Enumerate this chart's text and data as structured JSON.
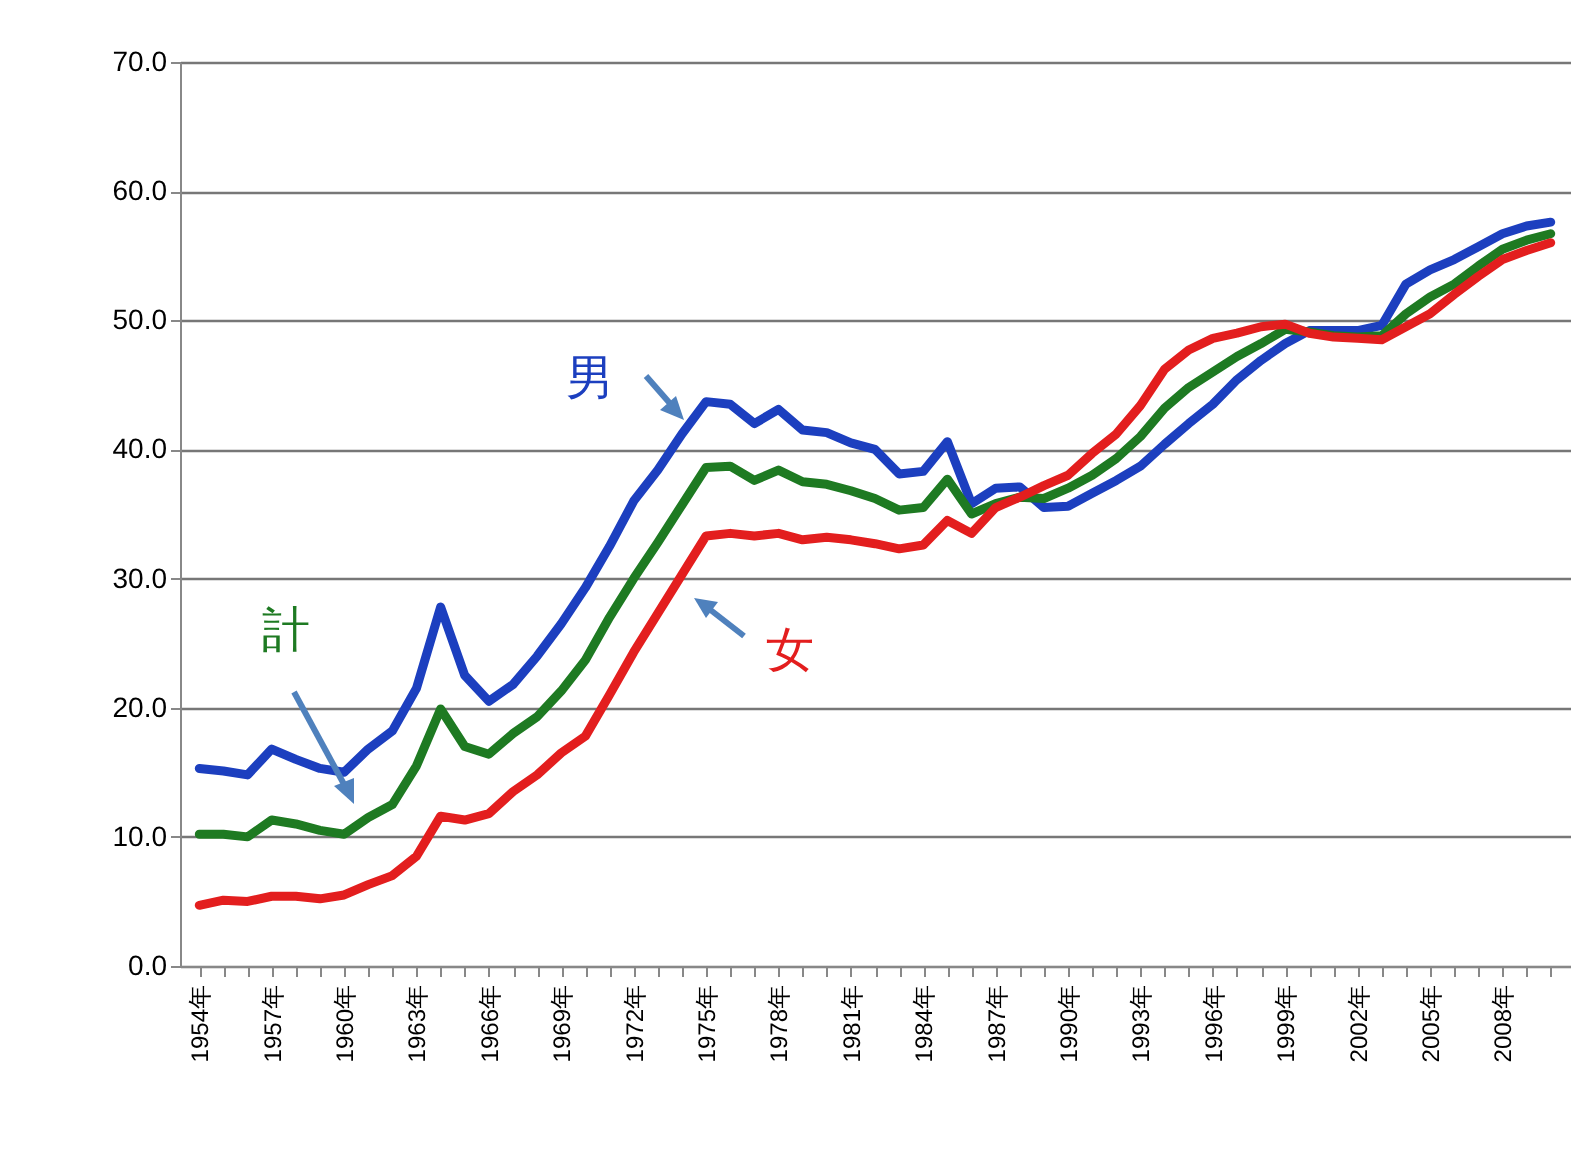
{
  "chart_data": {
    "type": "line",
    "categories": [
      "1954年",
      null,
      null,
      "1957年",
      null,
      null,
      "1960年",
      null,
      null,
      "1963年",
      null,
      null,
      "1966年",
      null,
      null,
      "1969年",
      null,
      null,
      "1972年",
      null,
      null,
      "1975年",
      null,
      null,
      "1978年",
      null,
      null,
      "1981年",
      null,
      null,
      "1984年",
      null,
      null,
      "1987年",
      null,
      null,
      "1990年",
      null,
      null,
      "1993年",
      null,
      null,
      "1996年",
      null,
      null,
      "1999年",
      null,
      null,
      "2002年",
      null,
      null,
      "2005年",
      null,
      null,
      "2008年",
      null,
      null
    ],
    "series": [
      {
        "name": "男",
        "color": "#1c3fbf",
        "values": [
          15.3,
          15.1,
          14.8,
          16.8,
          16.0,
          15.3,
          15.0,
          16.8,
          18.2,
          21.5,
          27.8,
          22.5,
          20.5,
          21.8,
          24.0,
          26.5,
          29.3,
          32.5,
          36.0,
          38.4,
          41.2,
          43.7,
          43.5,
          42.0,
          43.1,
          41.5,
          41.3,
          40.5,
          40.0,
          38.1,
          38.3,
          40.6,
          35.8,
          37.0,
          37.1,
          35.5,
          35.6,
          36.6,
          37.6,
          38.7,
          40.4,
          42.0,
          43.5,
          45.4,
          46.9,
          48.2,
          49.2,
          49.2,
          49.2,
          49.6,
          52.8,
          53.9,
          54.7,
          55.7,
          56.7,
          57.3,
          57.6
        ]
      },
      {
        "name": "計",
        "color": "#1e7a22",
        "values": [
          10.2,
          10.2,
          10.0,
          11.3,
          11.0,
          10.5,
          10.2,
          11.5,
          12.5,
          15.5,
          19.9,
          17.0,
          16.4,
          18.0,
          19.3,
          21.3,
          23.7,
          27.0,
          30.0,
          32.8,
          35.7,
          38.6,
          38.7,
          37.6,
          38.4,
          37.5,
          37.3,
          36.8,
          36.2,
          35.3,
          35.5,
          37.7,
          35.0,
          35.8,
          36.3,
          36.2,
          37.0,
          38.0,
          39.3,
          41.0,
          43.2,
          44.8,
          46.0,
          47.2,
          48.2,
          49.3,
          49.1,
          48.8,
          48.7,
          48.8,
          50.5,
          51.8,
          52.8,
          54.2,
          55.5,
          56.2,
          56.7
        ]
      },
      {
        "name": "女",
        "color": "#e31e1e",
        "values": [
          4.7,
          5.1,
          5.0,
          5.4,
          5.4,
          5.2,
          5.5,
          6.3,
          7.0,
          8.5,
          11.6,
          11.3,
          11.8,
          13.5,
          14.8,
          16.5,
          17.8,
          21.0,
          24.3,
          27.3,
          30.3,
          33.3,
          33.5,
          33.3,
          33.5,
          33.0,
          33.2,
          33.0,
          32.7,
          32.3,
          32.6,
          34.5,
          33.5,
          35.5,
          36.3,
          37.2,
          38.0,
          39.7,
          41.2,
          43.4,
          46.2,
          47.7,
          48.6,
          49.0,
          49.5,
          49.7,
          49.0,
          48.7,
          48.6,
          48.5,
          49.5,
          50.5,
          52.0,
          53.4,
          54.7,
          55.4,
          56.0
        ]
      }
    ],
    "ylim": [
      0,
      70
    ],
    "yticks": [
      {
        "value": 0,
        "label": "0.0"
      },
      {
        "value": 10,
        "label": "10.0"
      },
      {
        "value": 20,
        "label": "20.0"
      },
      {
        "value": 30,
        "label": "30.0"
      },
      {
        "value": 40,
        "label": "40.0"
      },
      {
        "value": 50,
        "label": "50.0"
      },
      {
        "value": 60,
        "label": "60.0"
      },
      {
        "value": 70,
        "label": "70.0"
      }
    ],
    "grid": "y",
    "legend": false,
    "marker": "none",
    "line_style": "solid"
  }
}
